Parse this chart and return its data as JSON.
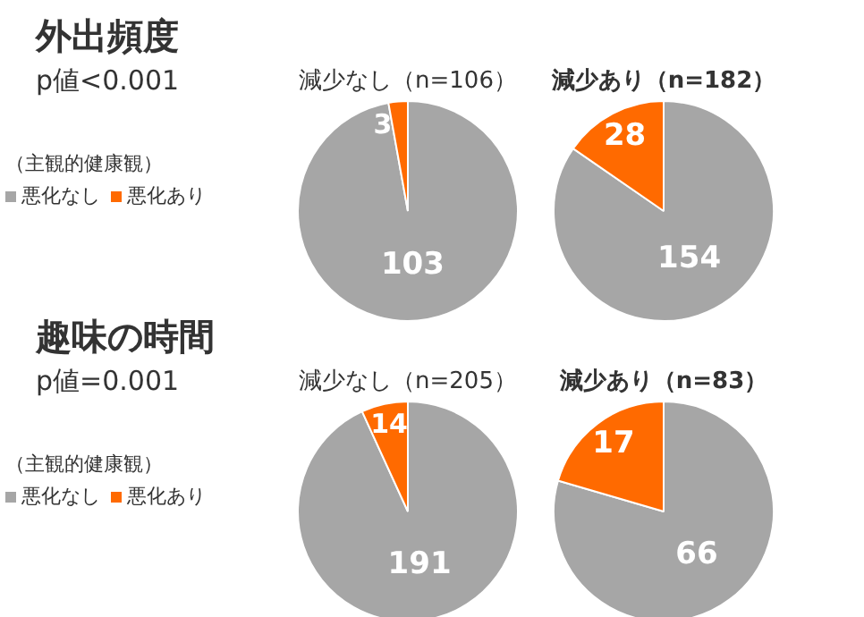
{
  "chart_data": [
    {
      "type": "other",
      "title": "外出頻度",
      "subtitle": "p値<0.001"
    },
    {
      "type": "pie",
      "title": "減少なし（n=106）",
      "categories": [
        "悪化なし",
        "悪化あり"
      ],
      "values": [
        103,
        3
      ],
      "colors": [
        "#a6a6a6",
        "#ff6a00"
      ],
      "data_labels": true,
      "legend": "left",
      "legend_title": "（主観的健康観）"
    },
    {
      "type": "pie",
      "title": "減少あり（n=182）",
      "values": [
        154,
        28
      ],
      "colors": [
        "#a6a6a6",
        "#ff6a00"
      ],
      "data_labels": true
    },
    {
      "type": "other",
      "title": "趣味の時間",
      "subtitle": "p値=0.001"
    },
    {
      "type": "pie",
      "title": "減少なし（n=205）",
      "categories": [
        "悪化なし",
        "悪化あり"
      ],
      "values": [
        191,
        14
      ],
      "colors": [
        "#a6a6a6",
        "#ff6a00"
      ],
      "data_labels": true,
      "legend": "left",
      "legend_title": "（主観的健康観）"
    },
    {
      "type": "pie",
      "title": "減少あり（n=83）",
      "values": [
        66,
        17
      ],
      "colors": [
        "#a6a6a6",
        "#ff6a00"
      ],
      "data_labels": true
    }
  ]
}
